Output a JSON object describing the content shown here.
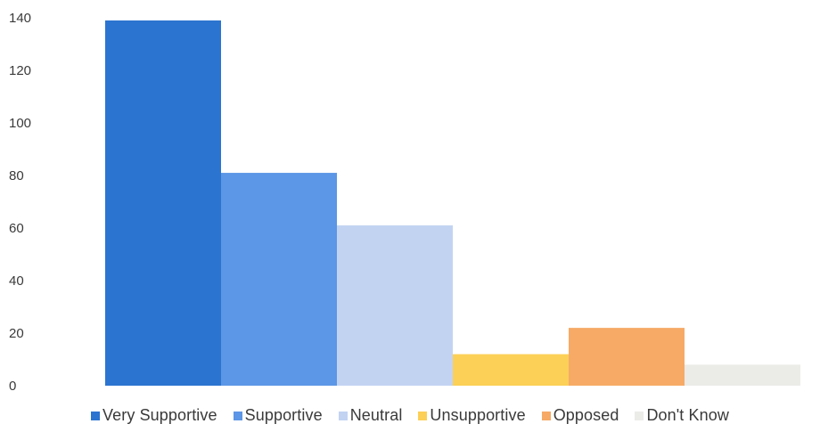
{
  "chart_data": {
    "type": "bar",
    "title": "",
    "xlabel": "",
    "ylabel": "",
    "ylim": [
      0,
      140
    ],
    "yticks": [
      0,
      20,
      40,
      60,
      80,
      100,
      120,
      140
    ],
    "grid": false,
    "legend_position": "bottom",
    "series": [
      {
        "name": "Very Supportive",
        "value": 139,
        "color": "#2b74d0"
      },
      {
        "name": "Supportive",
        "value": 81,
        "color": "#5c96e6"
      },
      {
        "name": "Neutral",
        "value": 61,
        "color": "#c2d3f2"
      },
      {
        "name": "Unsupportive",
        "value": 12,
        "color": "#fcd057"
      },
      {
        "name": "Opposed",
        "value": 22,
        "color": "#f6aa66"
      },
      {
        "name": "Don't Know",
        "value": 8,
        "color": "#ebebe8"
      }
    ]
  }
}
